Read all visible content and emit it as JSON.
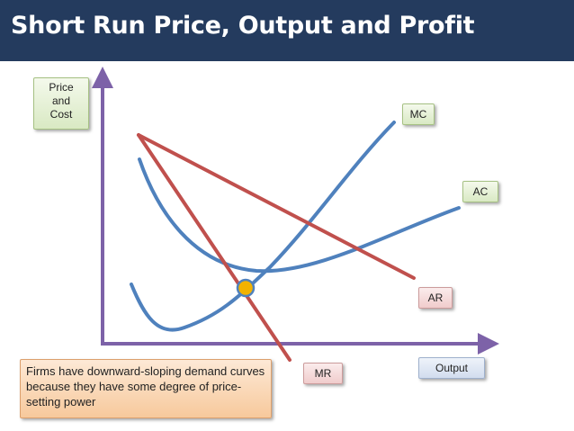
{
  "title": "Short Run Price, Output and Profit",
  "axes": {
    "y_label_lines": [
      "Price",
      "and",
      "Cost"
    ],
    "x_label": "Output"
  },
  "curves": {
    "mc": "MC",
    "ac": "AC",
    "ar": "AR",
    "mr": "MR"
  },
  "note": "Firms have downward-sloping demand curves because they have some degree of price-setting power",
  "colors": {
    "header": "#243b5e",
    "axis": "#7d62a8",
    "mc_ac": "#4f81bd",
    "ar_mr": "#c0504d",
    "equilibrium_point": "#f2b200"
  }
}
